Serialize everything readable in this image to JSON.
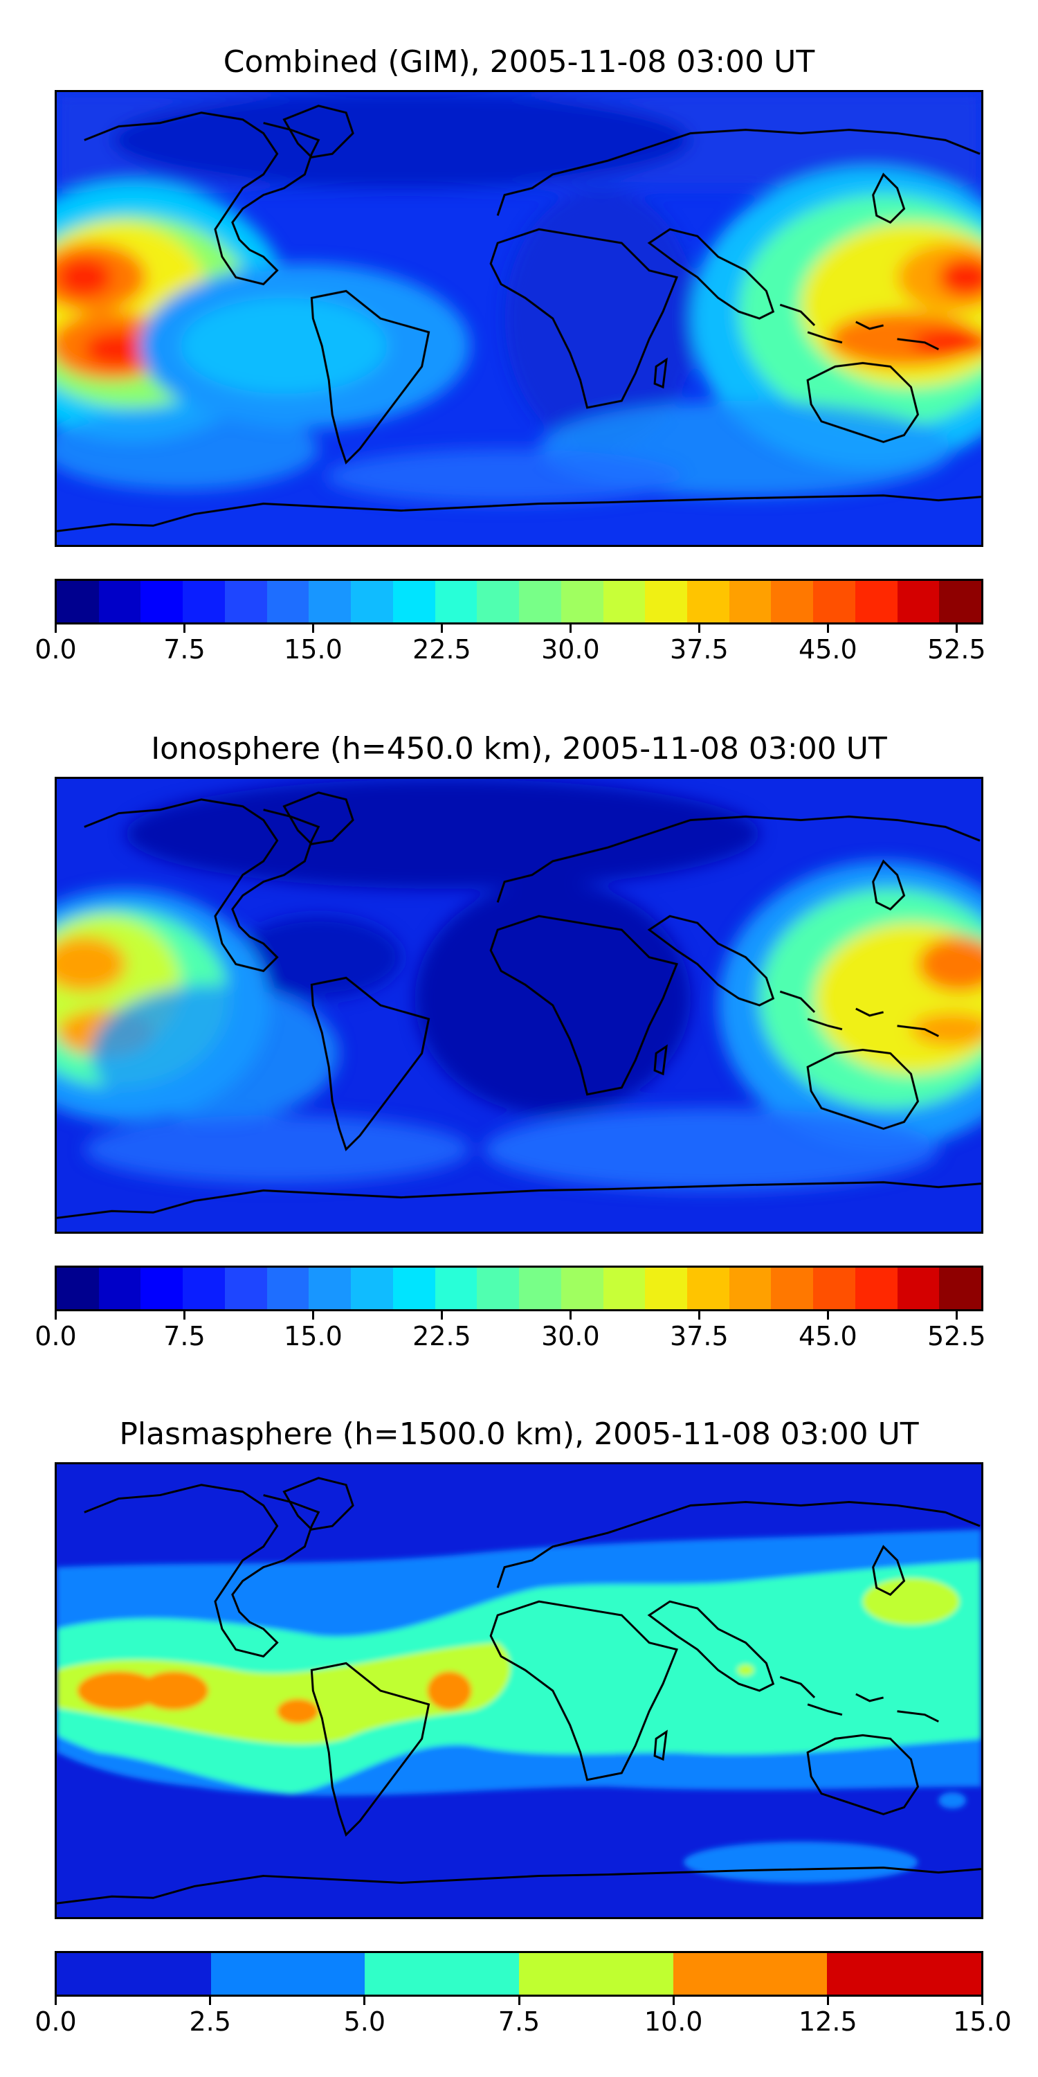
{
  "panels": [
    {
      "title": "Combined (GIM), 2005-11-08 03:00 UT",
      "colorbar": {
        "min": 0.0,
        "max": 54.0,
        "tick_labels": [
          "0.0",
          "7.5",
          "15.0",
          "22.5",
          "30.0",
          "37.5",
          "45.0",
          "52.5"
        ],
        "tick_values": [
          0.0,
          7.5,
          15.0,
          22.5,
          30.0,
          37.5,
          45.0,
          52.5
        ],
        "colors": [
          "#00008f",
          "#0000c8",
          "#0000ff",
          "#0a1eff",
          "#1e46ff",
          "#1e6eff",
          "#1896ff",
          "#10bcff",
          "#00e4ff",
          "#28ffd8",
          "#50ffb0",
          "#78ff88",
          "#a0ff60",
          "#c8ff38",
          "#f0f014",
          "#ffc400",
          "#ffa000",
          "#ff7800",
          "#ff5000",
          "#ff2800",
          "#d40000",
          "#8f0000"
        ]
      }
    },
    {
      "title": "Ionosphere  (h=450.0 km), 2005-11-08 03:00 UT",
      "colorbar": {
        "min": 0.0,
        "max": 54.0,
        "tick_labels": [
          "0.0",
          "7.5",
          "15.0",
          "22.5",
          "30.0",
          "37.5",
          "45.0",
          "52.5"
        ],
        "tick_values": [
          0.0,
          7.5,
          15.0,
          22.5,
          30.0,
          37.5,
          45.0,
          52.5
        ],
        "colors": [
          "#00008f",
          "#0000c8",
          "#0000ff",
          "#0a1eff",
          "#1e46ff",
          "#1e6eff",
          "#1896ff",
          "#10bcff",
          "#00e4ff",
          "#28ffd8",
          "#50ffb0",
          "#78ff88",
          "#a0ff60",
          "#c8ff38",
          "#f0f014",
          "#ffc400",
          "#ffa000",
          "#ff7800",
          "#ff5000",
          "#ff2800",
          "#d40000",
          "#8f0000"
        ]
      }
    },
    {
      "title": "Plasmasphere (h=1500.0 km), 2005-11-08 03:00 UT",
      "colorbar": {
        "min": 0.0,
        "max": 15.0,
        "tick_labels": [
          "0.0",
          "2.5",
          "5.0",
          "7.5",
          "10.0",
          "12.5",
          "15.0"
        ],
        "tick_values": [
          0.0,
          2.5,
          5.0,
          7.5,
          10.0,
          12.5,
          15.0
        ],
        "colors": [
          "#0a1eda",
          "#0a82ff",
          "#30ffc8",
          "#c0ff30",
          "#ff8c00",
          "#d40000"
        ]
      }
    }
  ]
}
